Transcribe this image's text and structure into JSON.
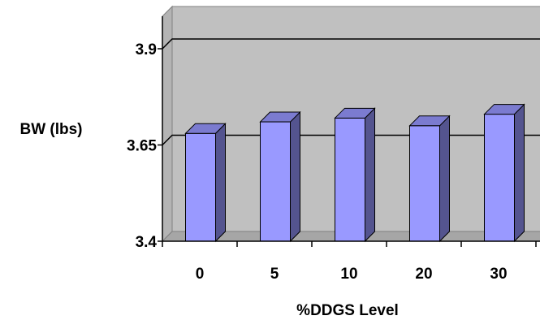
{
  "chart_data": {
    "type": "bar",
    "style": "3d-clustered-column",
    "title": "",
    "xlabel": "%DDGS Level",
    "ylabel": "BW (lbs)",
    "categories": [
      "0",
      "5",
      "10",
      "20",
      "30"
    ],
    "series": [
      {
        "name": "",
        "values": [
          3.68,
          3.71,
          3.72,
          3.7,
          3.73
        ]
      }
    ],
    "ylim": [
      3.4,
      3.9
    ],
    "yticks": [
      "3.4",
      "3.65",
      "3.9"
    ],
    "grid": true,
    "legend": "none",
    "colors": {
      "bar_front": "#9999ff",
      "bar_side": "#54548f",
      "bar_top": "#7b7bd0",
      "wall": "#c0c0c0",
      "floor": "#a6a6a6",
      "axis": "#000000"
    }
  }
}
